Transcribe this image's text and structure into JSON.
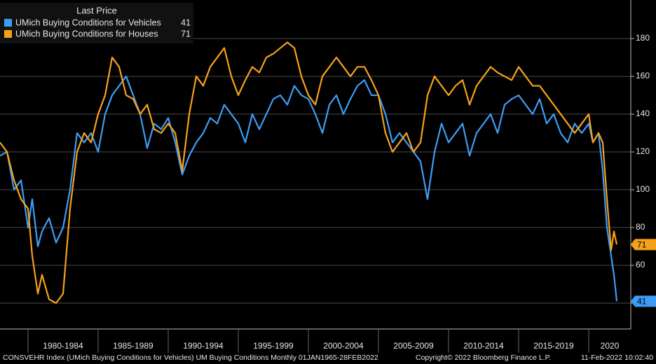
{
  "chart_data": {
    "type": "line",
    "legend_title": "Last Price",
    "legend": "upper left",
    "grid": true,
    "x": [
      1978,
      1978.5,
      1979,
      1979.5,
      1980,
      1980.3,
      1980.7,
      1981,
      1981.5,
      1982,
      1982.5,
      1983,
      1983.5,
      1984,
      1984.5,
      1985,
      1985.5,
      1986,
      1986.5,
      1987,
      1987.5,
      1988,
      1988.5,
      1989,
      1989.5,
      1990,
      1990.5,
      1991,
      1991.5,
      1992,
      1992.5,
      1993,
      1993.5,
      1994,
      1994.5,
      1995,
      1995.5,
      1996,
      1996.5,
      1997,
      1997.5,
      1998,
      1998.5,
      1999,
      1999.5,
      2000,
      2000.5,
      2001,
      2001.5,
      2002,
      2002.5,
      2003,
      2003.5,
      2004,
      2004.5,
      2005,
      2005.5,
      2006,
      2006.5,
      2007,
      2007.5,
      2008,
      2008.5,
      2009,
      2009.5,
      2010,
      2010.5,
      2011,
      2011.5,
      2012,
      2012.5,
      2013,
      2013.5,
      2014,
      2014.5,
      2015,
      2015.5,
      2016,
      2016.5,
      2017,
      2017.5,
      2018,
      2018.5,
      2019,
      2019.5,
      2020,
      2020.3,
      2020.7,
      2021,
      2021.3,
      2021.6,
      2021.8,
      2022
    ],
    "series": [
      {
        "name": "UMich Buying Conditions for Vehicles",
        "color": "#3d9df5",
        "values": [
          118,
          120,
          100,
          105,
          80,
          95,
          70,
          78,
          85,
          72,
          80,
          100,
          130,
          125,
          130,
          120,
          140,
          150,
          155,
          160,
          150,
          140,
          122,
          135,
          132,
          138,
          125,
          108,
          118,
          125,
          130,
          138,
          135,
          145,
          140,
          135,
          125,
          140,
          132,
          140,
          148,
          150,
          145,
          155,
          150,
          148,
          140,
          130,
          145,
          150,
          140,
          148,
          155,
          158,
          150,
          150,
          140,
          125,
          130,
          125,
          120,
          115,
          95,
          120,
          135,
          125,
          130,
          135,
          118,
          130,
          135,
          140,
          130,
          145,
          148,
          150,
          145,
          140,
          148,
          135,
          140,
          130,
          125,
          135,
          130,
          135,
          125,
          130,
          110,
          80,
          65,
          55,
          41
        ]
      },
      {
        "name": "UMich Buying Conditions for Houses",
        "color": "#f7a11a",
        "values": [
          125,
          120,
          105,
          95,
          90,
          65,
          45,
          55,
          42,
          40,
          45,
          90,
          120,
          130,
          125,
          140,
          150,
          170,
          165,
          150,
          148,
          140,
          145,
          132,
          130,
          135,
          130,
          110,
          140,
          160,
          155,
          165,
          170,
          175,
          160,
          150,
          158,
          165,
          162,
          170,
          172,
          175,
          178,
          175,
          160,
          150,
          145,
          160,
          165,
          170,
          165,
          160,
          165,
          165,
          158,
          150,
          130,
          120,
          125,
          130,
          120,
          125,
          150,
          160,
          155,
          150,
          155,
          158,
          145,
          155,
          160,
          165,
          162,
          160,
          158,
          165,
          160,
          155,
          155,
          150,
          145,
          140,
          135,
          130,
          135,
          140,
          125,
          130,
          125,
          95,
          68,
          78,
          71
        ]
      }
    ],
    "xlim": [
      1978,
      2023
    ],
    "xticks": [
      {
        "value": 1980,
        "label": "1980-1984"
      },
      {
        "value": 1985,
        "label": "1985-1989"
      },
      {
        "value": 1990,
        "label": "1990-1994"
      },
      {
        "value": 1995,
        "label": "1995-1999"
      },
      {
        "value": 2000,
        "label": "2000-2004"
      },
      {
        "value": 2005,
        "label": "2005-2009"
      },
      {
        "value": 2010,
        "label": "2010-2014"
      },
      {
        "value": 2015,
        "label": "2015-2019"
      },
      {
        "value": 2020,
        "label": "2020"
      }
    ],
    "ylim": [
      26.3,
      200.4
    ],
    "yticks": [
      40,
      60,
      80,
      100,
      120,
      140,
      160,
      180
    ],
    "footer": [
      "CONSVEHR Index (UMich Buying Conditions for Vehicles) UM Buying Conditions  Monthly 01JAN1965-28FEB2022",
      "Copyright© 2022 Bloomberg Finance L.P.",
      "11-Feb-2022 10:02:40"
    ]
  }
}
